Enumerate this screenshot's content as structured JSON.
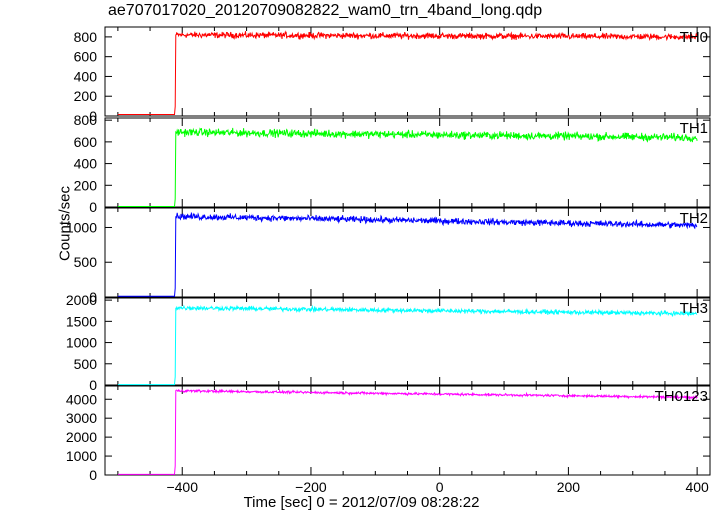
{
  "title": "ae707017020_20120709082822_wam0_trn_4band_long.qdp",
  "chart_data": {
    "type": "line",
    "title": "ae707017020_20120709082822_wam0_trn_4band_long.qdp",
    "xlabel": "Time [sec] 0 = 2012/07/09 08:28:22",
    "ylabel": "Counts/sec",
    "xlim": [
      -520,
      420
    ],
    "xticks": [
      -400,
      -200,
      0,
      200,
      400
    ],
    "grid": false,
    "panels": [
      {
        "name": "TH0",
        "color": "#ff0000",
        "ylim": [
          0,
          900
        ],
        "yticks": [
          0,
          200,
          400,
          600,
          800
        ],
        "pre_level": 15,
        "onset_x": -410,
        "post_start": 820,
        "post_end": 800,
        "noise": 30
      },
      {
        "name": "TH1",
        "color": "#00ff00",
        "ylim": [
          0,
          820
        ],
        "yticks": [
          0,
          200,
          400,
          600,
          800
        ],
        "pre_level": 5,
        "onset_x": -410,
        "post_start": 690,
        "post_end": 640,
        "noise": 35
      },
      {
        "name": "TH2",
        "color": "#0000ff",
        "ylim": [
          0,
          1280
        ],
        "yticks": [
          0,
          500,
          1000
        ],
        "pre_level": 10,
        "onset_x": -410,
        "post_start": 1160,
        "post_end": 1030,
        "noise": 45
      },
      {
        "name": "TH3",
        "color": "#00ffff",
        "ylim": [
          0,
          2050
        ],
        "yticks": [
          0,
          500,
          1000,
          1500,
          2000
        ],
        "pre_level": 10,
        "onset_x": -410,
        "post_start": 1820,
        "post_end": 1680,
        "noise": 50
      },
      {
        "name": "TH0123",
        "color": "#ff00ff",
        "ylim": [
          0,
          4700
        ],
        "yticks": [
          0,
          1000,
          2000,
          3000,
          4000
        ],
        "pre_level": 30,
        "onset_x": -410,
        "post_start": 4450,
        "post_end": 4100,
        "noise": 60
      }
    ]
  }
}
